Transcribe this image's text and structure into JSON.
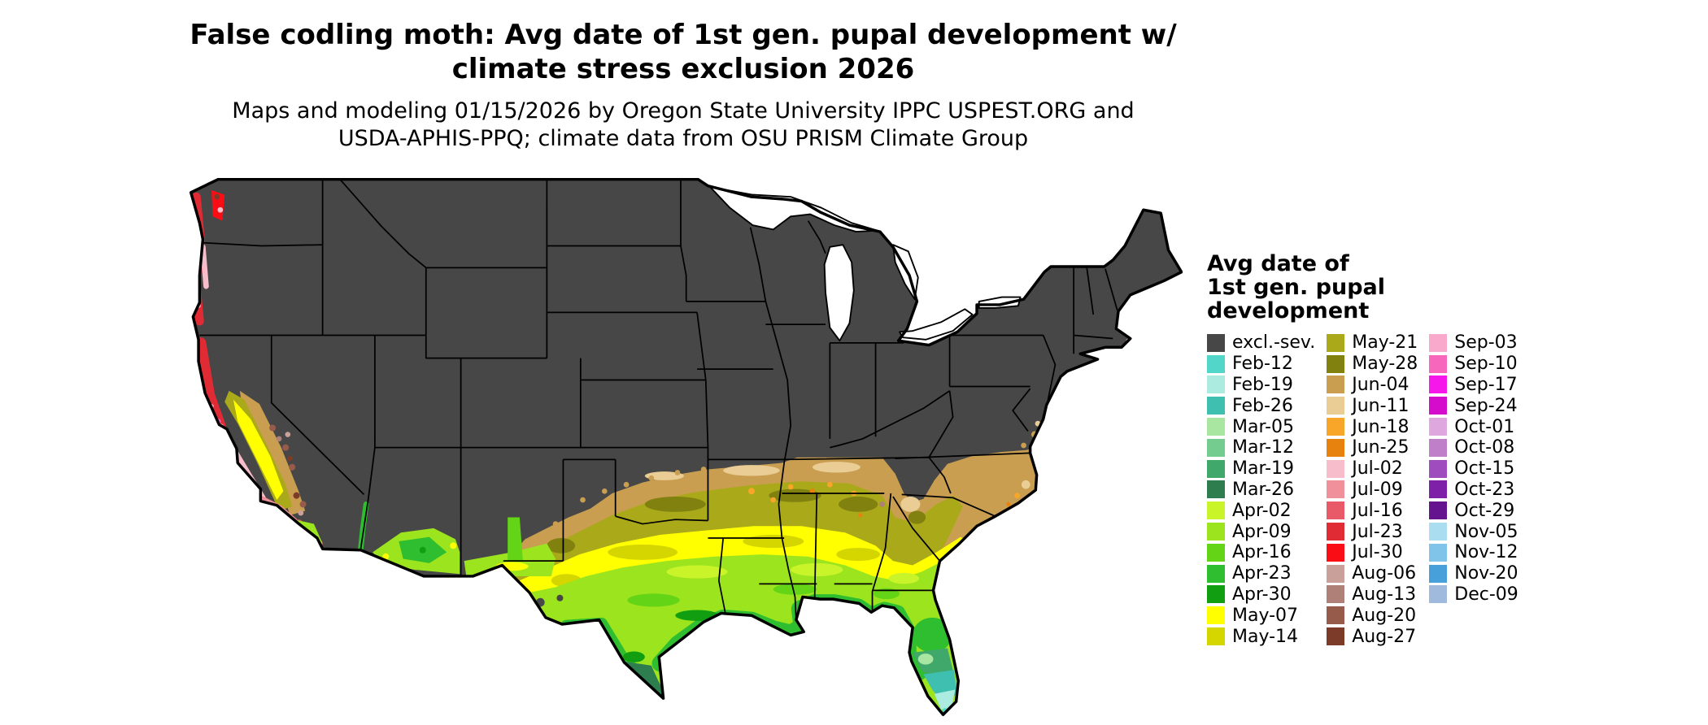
{
  "title": {
    "line1": "False codling moth: Avg date of 1st gen. pupal development w/",
    "line2": "climate stress exclusion 2026"
  },
  "subtitle": {
    "line1": "Maps and modeling 01/15/2026 by Oregon State University IPPC USPEST.ORG and",
    "line2": "USDA-APHIS-PPQ; climate data from OSU PRISM Climate Group"
  },
  "legend": {
    "title_lines": [
      "Avg date of",
      "1st gen. pupal",
      "development"
    ],
    "columns": [
      {
        "entries": [
          {
            "label": "excl.-sev.",
            "color": "#474747"
          },
          {
            "label": "Feb-12",
            "color": "#52D6C9"
          },
          {
            "label": "Feb-19",
            "color": "#ABEBE0"
          },
          {
            "label": "Feb-26",
            "color": "#3FBFAF"
          },
          {
            "label": "Mar-05",
            "color": "#A8E6A2"
          },
          {
            "label": "Mar-12",
            "color": "#74CD8E"
          },
          {
            "label": "Mar-19",
            "color": "#41A86B"
          },
          {
            "label": "Mar-26",
            "color": "#2D7D4F"
          },
          {
            "label": "Apr-02",
            "color": "#C9F42A"
          },
          {
            "label": "Apr-09",
            "color": "#9CE41E"
          },
          {
            "label": "Apr-16",
            "color": "#63D416"
          },
          {
            "label": "Apr-23",
            "color": "#2FBE2F"
          },
          {
            "label": "Apr-30",
            "color": "#119F11"
          },
          {
            "label": "May-07",
            "color": "#FFFF00"
          },
          {
            "label": "May-14",
            "color": "#D5D500"
          }
        ]
      },
      {
        "entries": [
          {
            "label": "May-21",
            "color": "#A9A919"
          },
          {
            "label": "May-28",
            "color": "#818110"
          },
          {
            "label": "Jun-04",
            "color": "#C99E51"
          },
          {
            "label": "Jun-11",
            "color": "#EACD95"
          },
          {
            "label": "Jun-18",
            "color": "#F7A629"
          },
          {
            "label": "Jun-25",
            "color": "#E8820F"
          },
          {
            "label": "Jul-02",
            "color": "#F7BDCB"
          },
          {
            "label": "Jul-09",
            "color": "#F0909B"
          },
          {
            "label": "Jul-16",
            "color": "#E95A69"
          },
          {
            "label": "Jul-23",
            "color": "#E12B34"
          },
          {
            "label": "Jul-30",
            "color": "#FB0D15"
          },
          {
            "label": "Aug-06",
            "color": "#C9A19A"
          },
          {
            "label": "Aug-13",
            "color": "#AF8078"
          },
          {
            "label": "Aug-20",
            "color": "#975B4B"
          },
          {
            "label": "Aug-27",
            "color": "#7C3B29"
          }
        ]
      },
      {
        "entries": [
          {
            "label": "Sep-03",
            "color": "#F9A9CB"
          },
          {
            "label": "Sep-10",
            "color": "#F767BB"
          },
          {
            "label": "Sep-17",
            "color": "#F618EA"
          },
          {
            "label": "Sep-24",
            "color": "#D60CCD"
          },
          {
            "label": "Oct-01",
            "color": "#DEA8DE"
          },
          {
            "label": "Oct-08",
            "color": "#BF80C9"
          },
          {
            "label": "Oct-15",
            "color": "#9F4CBF"
          },
          {
            "label": "Oct-23",
            "color": "#7F20A9"
          },
          {
            "label": "Oct-29",
            "color": "#65138F"
          },
          {
            "label": "Nov-05",
            "color": "#ABDDF1"
          },
          {
            "label": "Nov-12",
            "color": "#80C5E9"
          },
          {
            "label": "Nov-20",
            "color": "#47A0D9"
          },
          {
            "label": "Dec-09",
            "color": "#A0BADD"
          }
        ]
      }
    ]
  }
}
